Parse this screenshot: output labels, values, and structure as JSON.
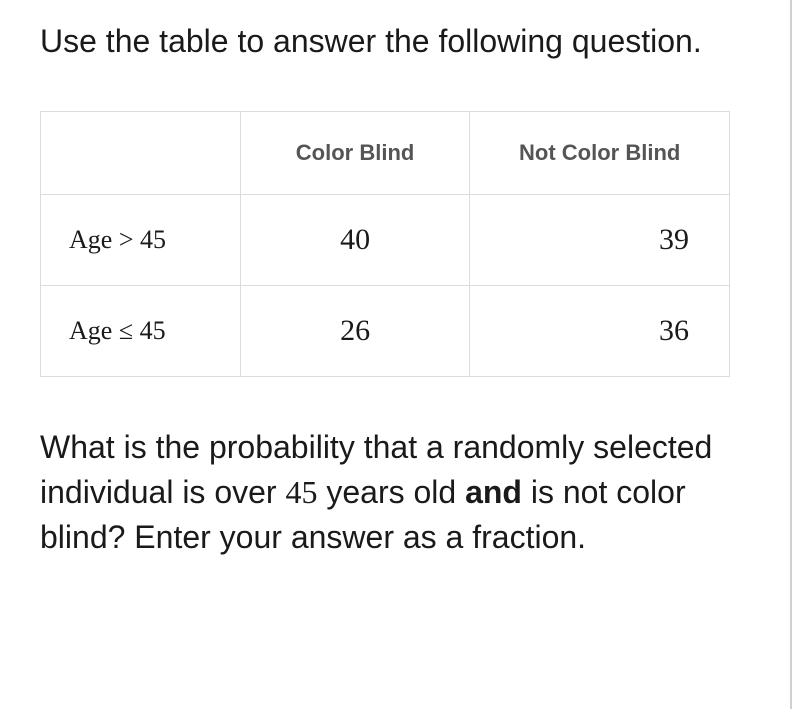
{
  "instruction": "Use the table to answer the following question.",
  "table": {
    "columns": [
      "Color Blind",
      "Not Color Blind"
    ],
    "rows": [
      {
        "label": "Age > 45",
        "cells": [
          "40",
          "39"
        ]
      },
      {
        "label": "Age ≤ 45",
        "cells": [
          "26",
          "36"
        ]
      }
    ],
    "border_color": "#dcdcdc",
    "header_color": "#555555",
    "header_fontsize": 22,
    "cell_fontsize": 30,
    "rowlabel_fontsize": 26,
    "background_color": "#ffffff"
  },
  "question": {
    "part1": "What is the probability that a randomly selected individual is over ",
    "number": "45",
    "part2": " years old ",
    "bold": "and",
    "part3": " is not color blind? Enter your answer as a fraction."
  },
  "colors": {
    "text": "#1a1a1a",
    "divider": "#d0d0d0"
  }
}
